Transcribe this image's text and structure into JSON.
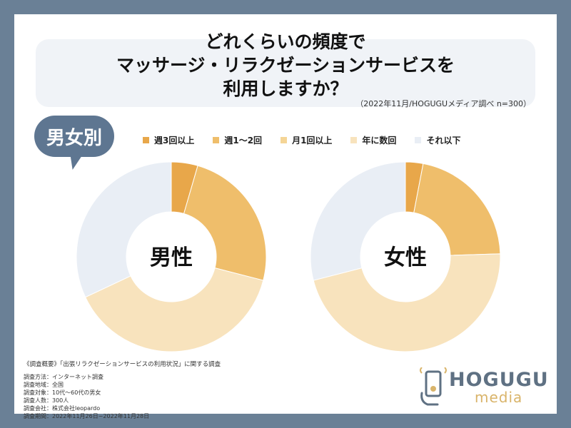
{
  "header": {
    "title_lines": [
      "どれくらいの頻度で",
      "マッサージ・リラクゼーションサービスを",
      "利用しますか？"
    ],
    "source": "（2022年11月/HOGUGUメディア調べ n=300）"
  },
  "badge": {
    "label": "男女別"
  },
  "legend": [
    {
      "label": "週3回以上",
      "color": "#e8a74a"
    },
    {
      "label": "週1〜2回",
      "color": "#efbe6b"
    },
    {
      "label": "月1回以上",
      "color": "#f5d596"
    },
    {
      "label": "年に数回",
      "color": "#f8e3bd"
    },
    {
      "label": "それ以下",
      "color": "#e9eef5"
    }
  ],
  "chart_data": [
    {
      "type": "pie",
      "title": "男性",
      "categories": [
        "週3回以上",
        "週1〜2回",
        "月1回以上",
        "年に数回",
        "それ以下"
      ],
      "values": [
        4.5,
        24.5,
        0,
        39,
        32
      ],
      "colors": [
        "#e8a74a",
        "#efbe6b",
        "#f5d596",
        "#f8e3bd",
        "#e9eef5"
      ]
    },
    {
      "type": "pie",
      "title": "女性",
      "categories": [
        "週3回以上",
        "週1〜2回",
        "月1回以上",
        "年に数回",
        "それ以下"
      ],
      "values": [
        3,
        21.5,
        0,
        46.5,
        29
      ],
      "colors": [
        "#e8a74a",
        "#efbe6b",
        "#f5d596",
        "#f8e3bd",
        "#e9eef5"
      ]
    }
  ],
  "footnote": {
    "heading": "《調査概要》「出張リラクゼーションサービスの利用状況」に関する調査",
    "lines": [
      "調査方法：インターネット調査",
      "調査地域：全国",
      "調査対象：10代〜60代の男女",
      "調査人数：300人",
      "調査会社：株式会社leopardo",
      "調査期間：2022年11月26日~2022年11月28日"
    ]
  },
  "logo": {
    "name": "HOGUGU",
    "sub": "media",
    "primary_color": "#5f7183",
    "accent_color": "#d9b46a"
  }
}
